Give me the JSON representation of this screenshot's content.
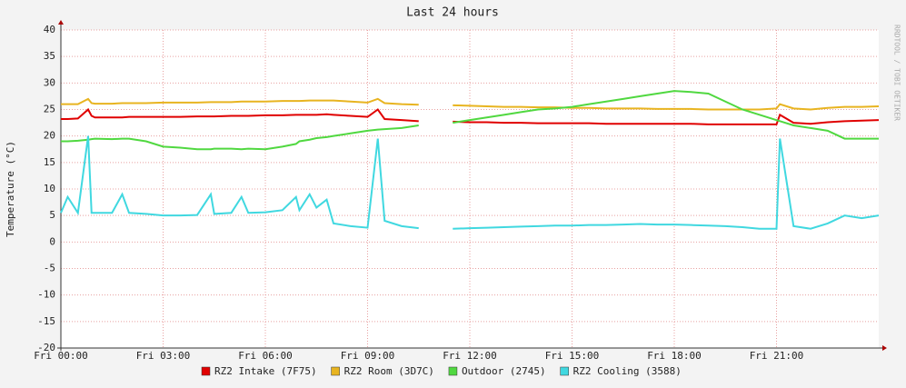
{
  "chart_data": {
    "type": "line",
    "title": "Last 24 hours",
    "y_label": "Temperature (°C)",
    "watermark": "RRDTOOL / TOBI OETIKER",
    "x": [
      0,
      0.2,
      0.5,
      0.8,
      0.9,
      1,
      1.5,
      1.8,
      2,
      2.5,
      3,
      3.5,
      4,
      4.4,
      4.5,
      5,
      5.3,
      5.5,
      6,
      6.5,
      6.9,
      7,
      7.3,
      7.5,
      7.8,
      8,
      8.5,
      9,
      9.3,
      9.5,
      10,
      10.5,
      11,
      11.5,
      12,
      12.5,
      13,
      13.5,
      14,
      14.5,
      15,
      15.5,
      16,
      16.5,
      17,
      17.5,
      18,
      18.5,
      19,
      19.5,
      20,
      20.5,
      21,
      21.1,
      21.5,
      22,
      22.5,
      23,
      23.5,
      24
    ],
    "xlim": [
      0,
      24
    ],
    "xticks": [
      {
        "value": 0,
        "label": "Fri 00:00"
      },
      {
        "value": 3,
        "label": "Fri 03:00"
      },
      {
        "value": 6,
        "label": "Fri 06:00"
      },
      {
        "value": 9,
        "label": "Fri 09:00"
      },
      {
        "value": 12,
        "label": "Fri 12:00"
      },
      {
        "value": 15,
        "label": "Fri 15:00"
      },
      {
        "value": 18,
        "label": "Fri 18:00"
      },
      {
        "value": 21,
        "label": "Fri 21:00"
      }
    ],
    "ylim": [
      -20,
      40
    ],
    "yticks": [
      -20,
      -15,
      -10,
      -5,
      0,
      5,
      10,
      15,
      20,
      25,
      30,
      35,
      40
    ],
    "grid": true,
    "series": [
      {
        "name": "RZ2 Intake (7F75)",
        "color": "#e00000",
        "values": [
          23.2,
          23.2,
          23.3,
          25,
          23.8,
          23.5,
          23.5,
          23.5,
          23.6,
          23.6,
          23.6,
          23.6,
          23.7,
          23.7,
          23.7,
          23.8,
          23.8,
          23.8,
          23.9,
          23.9,
          24,
          24,
          24,
          24,
          24.1,
          24,
          23.8,
          23.6,
          25,
          23.2,
          23,
          22.8,
          null,
          22.7,
          22.6,
          22.6,
          22.5,
          22.5,
          22.4,
          22.4,
          22.4,
          22.4,
          22.3,
          22.3,
          22.3,
          22.3,
          22.3,
          22.3,
          22.2,
          22.2,
          22.2,
          22.2,
          22.2,
          24,
          22.5,
          22.3,
          22.6,
          22.8,
          22.9,
          23
        ]
      },
      {
        "name": "RZ2 Room (3D7C)",
        "color": "#e8b420",
        "values": [
          26,
          26,
          26,
          27,
          26.2,
          26.1,
          26.1,
          26.2,
          26.2,
          26.2,
          26.3,
          26.3,
          26.3,
          26.4,
          26.4,
          26.4,
          26.5,
          26.5,
          26.5,
          26.6,
          26.6,
          26.6,
          26.7,
          26.7,
          26.7,
          26.7,
          26.5,
          26.3,
          27,
          26.2,
          26,
          25.9,
          null,
          25.8,
          25.7,
          25.6,
          25.5,
          25.5,
          25.4,
          25.4,
          25.3,
          25.3,
          25.2,
          25.2,
          25.2,
          25.1,
          25.1,
          25.1,
          25,
          25,
          25,
          25,
          25.2,
          26,
          25.2,
          25,
          25.3,
          25.5,
          25.5,
          25.6
        ]
      },
      {
        "name": "Outdoor (2745)",
        "color": "#50d840",
        "values": [
          19,
          19,
          19.1,
          19.3,
          19.4,
          19.5,
          19.4,
          19.5,
          19.5,
          19,
          18,
          17.8,
          17.5,
          17.5,
          17.6,
          17.6,
          17.5,
          17.6,
          17.5,
          18,
          18.5,
          19,
          19.3,
          19.6,
          19.8,
          20,
          20.5,
          21,
          21.2,
          21.3,
          21.5,
          22,
          null,
          22.5,
          23,
          23.5,
          24,
          24.5,
          25,
          25.2,
          25.5,
          26,
          26.5,
          27,
          27.5,
          28,
          28.5,
          28.3,
          28,
          26.5,
          25,
          24,
          23,
          22.8,
          22,
          21.5,
          21,
          19.5,
          19.5,
          19.5
        ]
      },
      {
        "name": "RZ2 Cooling (3588)",
        "color": "#40d8e0",
        "values": [
          5.5,
          8.5,
          5.5,
          20,
          5.5,
          5.5,
          5.5,
          9,
          5.5,
          5.3,
          5,
          5,
          5.1,
          9,
          5.3,
          5.5,
          8.5,
          5.5,
          5.6,
          6,
          8.5,
          6,
          9,
          6.5,
          8,
          3.5,
          3,
          2.7,
          19.5,
          4,
          3,
          2.6,
          null,
          2.5,
          2.6,
          2.7,
          2.8,
          2.9,
          3,
          3.1,
          3.1,
          3.2,
          3.2,
          3.3,
          3.4,
          3.3,
          3.3,
          3.2,
          3.1,
          3,
          2.8,
          2.5,
          2.5,
          19.5,
          3,
          2.5,
          3.5,
          5,
          4.5,
          5
        ]
      }
    ]
  }
}
